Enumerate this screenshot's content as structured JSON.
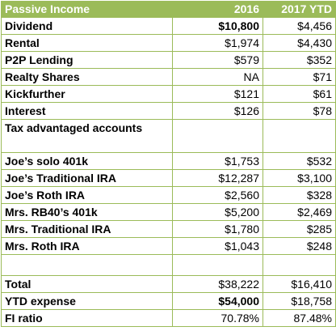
{
  "header": {
    "label": "Passive Income",
    "col_2016": "2016",
    "col_2017": "2017 YTD"
  },
  "rows": [
    {
      "label": "Dividend",
      "v2016": "$10,800",
      "v2017": "$4,456",
      "bold2016": true
    },
    {
      "label": "Rental",
      "v2016": "$1,974",
      "v2017": "$4,430"
    },
    {
      "label": "P2P Lending",
      "v2016": "$579",
      "v2017": "$352"
    },
    {
      "label": "Realty Shares",
      "v2016": "NA",
      "v2017": "$71"
    },
    {
      "label": "Kickfurther",
      "v2016": "$121",
      "v2017": "$61"
    },
    {
      "label": "Interest",
      "v2016": "$126",
      "v2017": "$78"
    },
    {
      "label": "Tax advantaged accounts",
      "v2016": "",
      "v2017": "",
      "multi": true
    },
    {
      "label": "Joe’s solo 401k",
      "v2016": "$1,753",
      "v2017": "$532"
    },
    {
      "label": "Joe’s Traditional IRA",
      "v2016": "$12,287",
      "v2017": "$3,100"
    },
    {
      "label": "Joe’s Roth IRA",
      "v2016": "$2,560",
      "v2017": "$328"
    },
    {
      "label": "Mrs. RB40’s 401k",
      "v2016": "$5,200",
      "v2017": "$2,469"
    },
    {
      "label": "Mrs. Traditional IRA",
      "v2016": "$1,780",
      "v2017": "$285"
    },
    {
      "label": "Mrs. Roth IRA",
      "v2016": "$1,043",
      "v2017": "$248"
    },
    {
      "label": "",
      "v2016": "",
      "v2017": "",
      "blank": true
    },
    {
      "label": "Total",
      "v2016": "$38,222",
      "v2017": "$16,410"
    },
    {
      "label": "YTD expense",
      "v2016": "$54,000",
      "v2017": "$18,758",
      "bold2016": true
    },
    {
      "label": "FI ratio",
      "v2016": "70.78%",
      "v2017": "87.48%"
    }
  ]
}
